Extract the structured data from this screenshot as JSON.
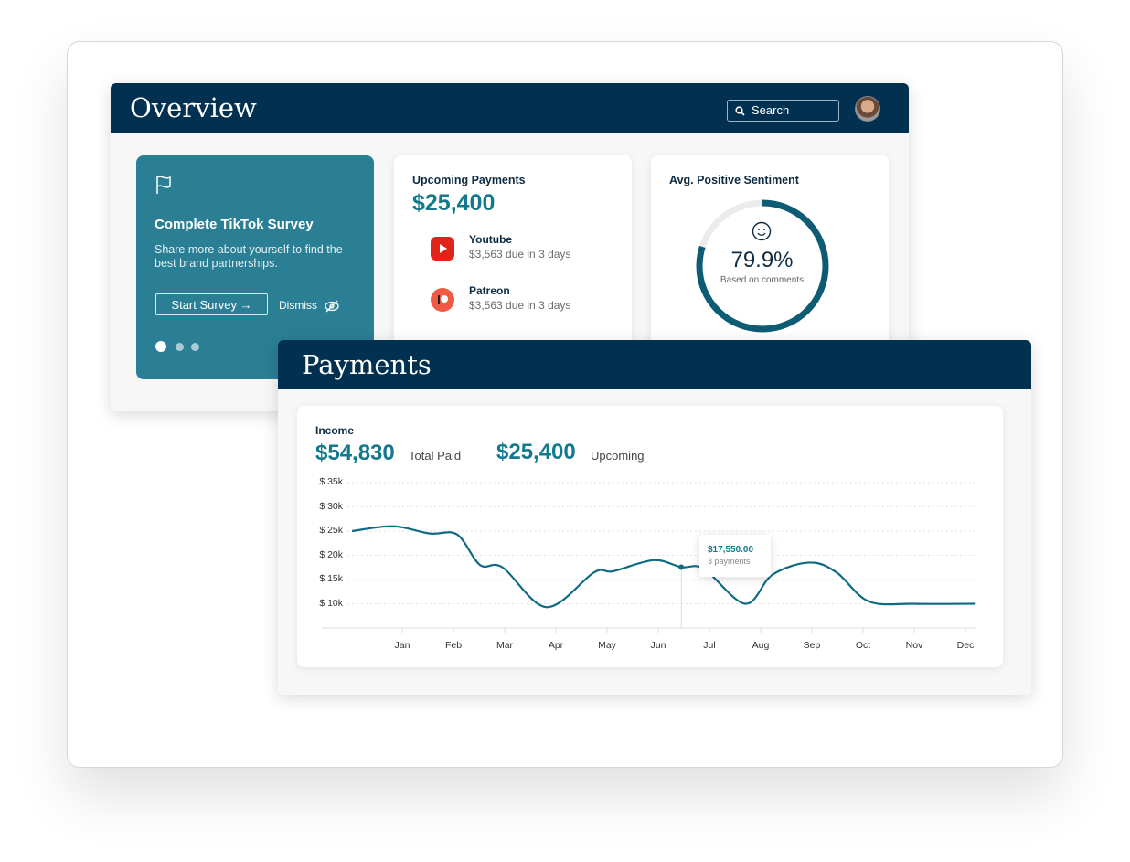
{
  "overview": {
    "title": "Overview",
    "search_placeholder": "Search",
    "survey": {
      "title": "Complete TikTok Survey",
      "text": "Share more about yourself to find the best brand partnerships.",
      "button": "Start Survey →",
      "dismiss": "Dismiss"
    },
    "upcoming": {
      "title": "Upcoming Payments",
      "amount": "$25,400",
      "items": [
        {
          "name": "Youtube",
          "detail": "$3,563 due in 3 days"
        },
        {
          "name": "Patreon",
          "detail": "$3,563 due in 3 days"
        }
      ]
    },
    "sentiment": {
      "title": "Avg. Positive Sentiment",
      "value": "79.9%",
      "sub": "Based on comments",
      "fraction": 0.799
    }
  },
  "payments": {
    "title": "Payments",
    "income_label": "Income",
    "total_paid": "$54,830",
    "total_paid_label": "Total Paid",
    "upcoming": "$25,400",
    "upcoming_label": "Upcoming",
    "tooltip": {
      "value": "$17,550.00",
      "sub": "3 payments",
      "month": 6.45
    }
  },
  "chart_data": {
    "type": "line",
    "title": "Income",
    "categories": [
      "Jan",
      "Feb",
      "Mar",
      "Apr",
      "May",
      "Jun",
      "Jul",
      "Aug",
      "Sep",
      "Oct",
      "Nov",
      "Dec"
    ],
    "yticks": [
      "$ 35k",
      "$ 30k",
      "$ 25k",
      "$ 20k",
      "$ 15k",
      "$ 10k"
    ],
    "ytick_values": [
      35000,
      30000,
      25000,
      20000,
      15000,
      10000
    ],
    "ylim": [
      5000,
      35000
    ],
    "series": [
      {
        "name": "Income",
        "x": [
          0.02,
          0.82,
          1.54,
          2.07,
          2.52,
          2.96,
          3.82,
          4.75,
          5.11,
          5.91,
          6.45,
          6.89,
          7.7,
          8.23,
          8.95,
          9.48,
          10.11,
          11.0,
          12.2
        ],
        "y": [
          25000,
          26000,
          24500,
          24300,
          18000,
          17500,
          9300,
          16500,
          16700,
          19000,
          17550,
          17200,
          10000,
          16000,
          18500,
          16500,
          10500,
          10000,
          10000
        ]
      }
    ]
  }
}
